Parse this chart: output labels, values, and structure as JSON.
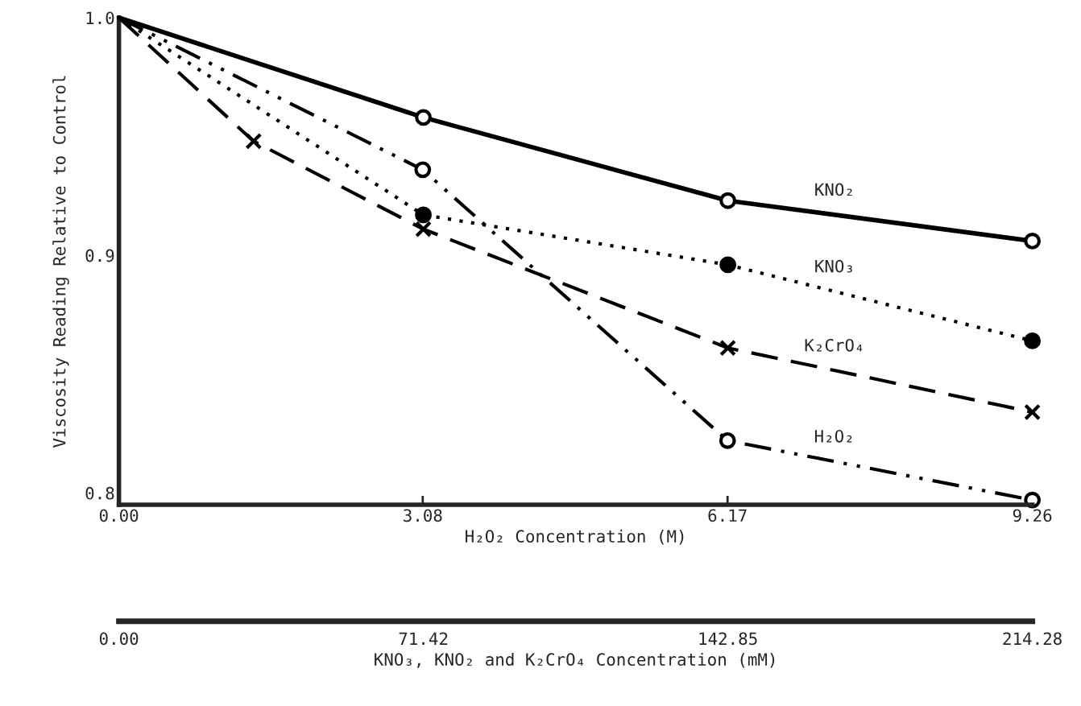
{
  "chart_data": {
    "type": "line",
    "xlabel": "H₂O₂ Concentration (M)",
    "ylabel": "Viscosity Reading Relative to Control",
    "x2label": "KNO₃, KNO₂ and K₂CrO₄ Concentration (mM)",
    "xlim": [
      0,
      9.26
    ],
    "xticks": [
      {
        "value": 0,
        "label": "0.00"
      },
      3.08,
      6.17,
      9.26
    ],
    "x2lim": [
      0,
      214.28
    ],
    "x2ticks": [
      {
        "value": 0,
        "label": "0.00"
      },
      71.42,
      142.85,
      214.28
    ],
    "ylim": [
      0.795,
      1.0
    ],
    "yticks": [
      0.8,
      0.9,
      {
        "value": 1.0,
        "label": "1.0"
      }
    ],
    "grid": false,
    "series": [
      {
        "name": "KNO₂",
        "color": "#000000",
        "axis": "x2",
        "line_style": "solid",
        "marker": "circle",
        "x": [
          0,
          71.42,
          142.85,
          214.28
        ],
        "values": [
          1.0,
          0.958,
          0.923,
          0.906
        ]
      },
      {
        "name": "KNO₃",
        "color": "#000000",
        "axis": "x2",
        "line_style": "dotted",
        "marker": "circle",
        "x": [
          0,
          71.42,
          142.85,
          214.28
        ],
        "values": [
          1.0,
          0.917,
          0.896,
          0.864
        ]
      },
      {
        "name": "K₂CrO₄",
        "color": "#000000",
        "axis": "x2",
        "line_style": "dashed",
        "marker": "cross",
        "x": [
          0,
          31.6,
          71.42,
          142.85,
          214.28
        ],
        "values": [
          1.0,
          0.948,
          0.911,
          0.861,
          0.834
        ]
      },
      {
        "name": "H₂O₂",
        "color": "#000000",
        "line_style": "dashdot",
        "marker": "circle",
        "x": [
          0,
          3.08,
          6.17,
          9.26
        ],
        "values": [
          1.0,
          0.936,
          0.822,
          0.797
        ]
      }
    ]
  }
}
